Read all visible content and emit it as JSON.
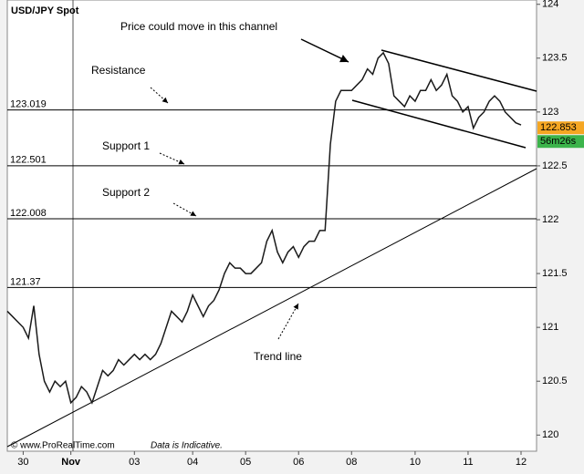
{
  "chart_data": {
    "type": "line",
    "title": "USD/JPY Spot",
    "categories": [
      null,
      null,
      null,
      "30",
      null,
      null,
      null,
      null,
      null,
      null,
      null,
      null,
      "Nov",
      null,
      null,
      null,
      null,
      null,
      null,
      null,
      null,
      null,
      null,
      null,
      "03",
      null,
      null,
      null,
      null,
      null,
      null,
      null,
      null,
      null,
      null,
      "04",
      null,
      null,
      null,
      null,
      null,
      null,
      null,
      null,
      null,
      "05",
      null,
      null,
      null,
      null,
      null,
      null,
      null,
      null,
      null,
      "06",
      null,
      null,
      null,
      null,
      null,
      null,
      null,
      null,
      null,
      "08",
      null,
      null,
      null,
      null,
      null,
      null,
      null,
      null,
      null,
      null,
      null,
      "10",
      null,
      null,
      null,
      null,
      null,
      null,
      null,
      null,
      null,
      "11",
      null,
      null,
      null,
      null,
      null,
      null,
      null,
      null,
      null,
      "12"
    ],
    "series": [
      {
        "name": "USD/JPY",
        "color": "#1a1a1a",
        "values": [
          121.15,
          121.1,
          121.05,
          121.0,
          120.9,
          121.2,
          120.75,
          120.5,
          120.4,
          120.5,
          120.45,
          120.5,
          120.3,
          120.35,
          120.45,
          120.4,
          120.3,
          120.45,
          120.6,
          120.55,
          120.6,
          120.7,
          120.65,
          120.7,
          120.75,
          120.7,
          120.75,
          120.7,
          120.75,
          120.85,
          121.0,
          121.15,
          121.1,
          121.05,
          121.15,
          121.3,
          121.2,
          121.1,
          121.2,
          121.25,
          121.35,
          121.5,
          121.6,
          121.55,
          121.55,
          121.5,
          121.5,
          121.55,
          121.6,
          121.8,
          121.9,
          121.7,
          121.6,
          121.7,
          121.75,
          121.65,
          121.75,
          121.8,
          121.8,
          121.9,
          121.9,
          122.7,
          123.1,
          123.2,
          123.2,
          123.2,
          123.25,
          123.3,
          123.4,
          123.35,
          123.5,
          123.55,
          123.45,
          123.15,
          123.1,
          123.05,
          123.15,
          123.1,
          123.2,
          123.2,
          123.3,
          123.2,
          123.25,
          123.35,
          123.15,
          123.1,
          123.0,
          123.05,
          122.85,
          122.95,
          123.0,
          123.1,
          123.15,
          123.1,
          123.0,
          122.95,
          122.9,
          122.88
        ]
      }
    ],
    "ylim": [
      119.85,
      124.04
    ],
    "yticks": [
      124,
      123.5,
      123,
      122.5,
      122,
      121.5,
      121,
      120.5,
      120
    ],
    "levels": [
      123.019,
      122.501,
      122.008,
      121.37
    ],
    "current_price": 122.853,
    "countdown": "56m26s",
    "annotations": {
      "channel": "Price could move in this channel",
      "resistance": "Resistance",
      "support1": "Support 1",
      "support2": "Support 2",
      "trend": "Trend line"
    },
    "footer": {
      "source": "© www.ProRealTime.com",
      "note": "Data is Indicative."
    }
  }
}
